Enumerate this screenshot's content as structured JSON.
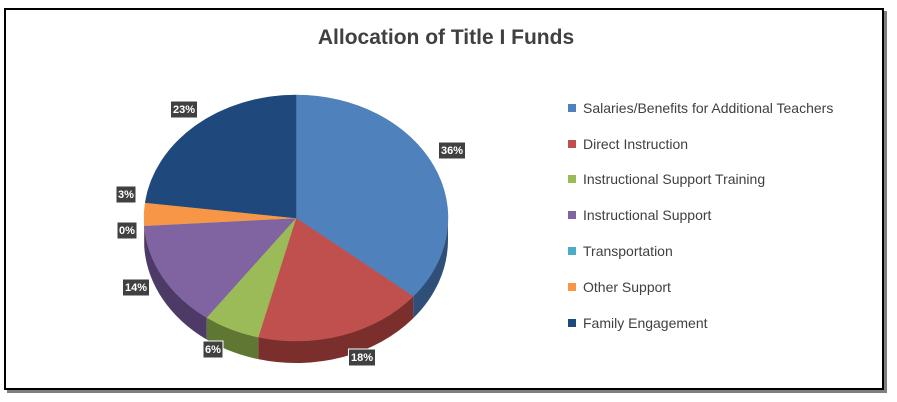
{
  "chart_data": {
    "type": "pie",
    "title": "Allocation of Title I Funds",
    "legend_position": "right",
    "slices": [
      {
        "name": "Salaries/Benefits for Additional Teachers",
        "value": 36,
        "label": "36%",
        "color": "#4f81bd",
        "dark": "#2f4f78"
      },
      {
        "name": "Direct Instruction",
        "value": 18,
        "label": "18%",
        "color": "#c0504d",
        "dark": "#7b2f2d"
      },
      {
        "name": "Instructional Support Training",
        "value": 6,
        "label": "6%",
        "color": "#9bbb59",
        "dark": "#5f7733"
      },
      {
        "name": "Instructional Support",
        "value": 14,
        "label": "14%",
        "color": "#8064a2",
        "dark": "#4e3a66"
      },
      {
        "name": "Transportation",
        "value": 0,
        "label": "0%",
        "color": "#4bacc6",
        "dark": "#2b6e80"
      },
      {
        "name": "Other Support",
        "value": 3,
        "label": "3%",
        "color": "#f79646",
        "dark": "#a85f22"
      },
      {
        "name": "Family Engagement",
        "value": 23,
        "label": "23%",
        "color": "#1f497d",
        "dark": "#132c4b"
      }
    ]
  }
}
